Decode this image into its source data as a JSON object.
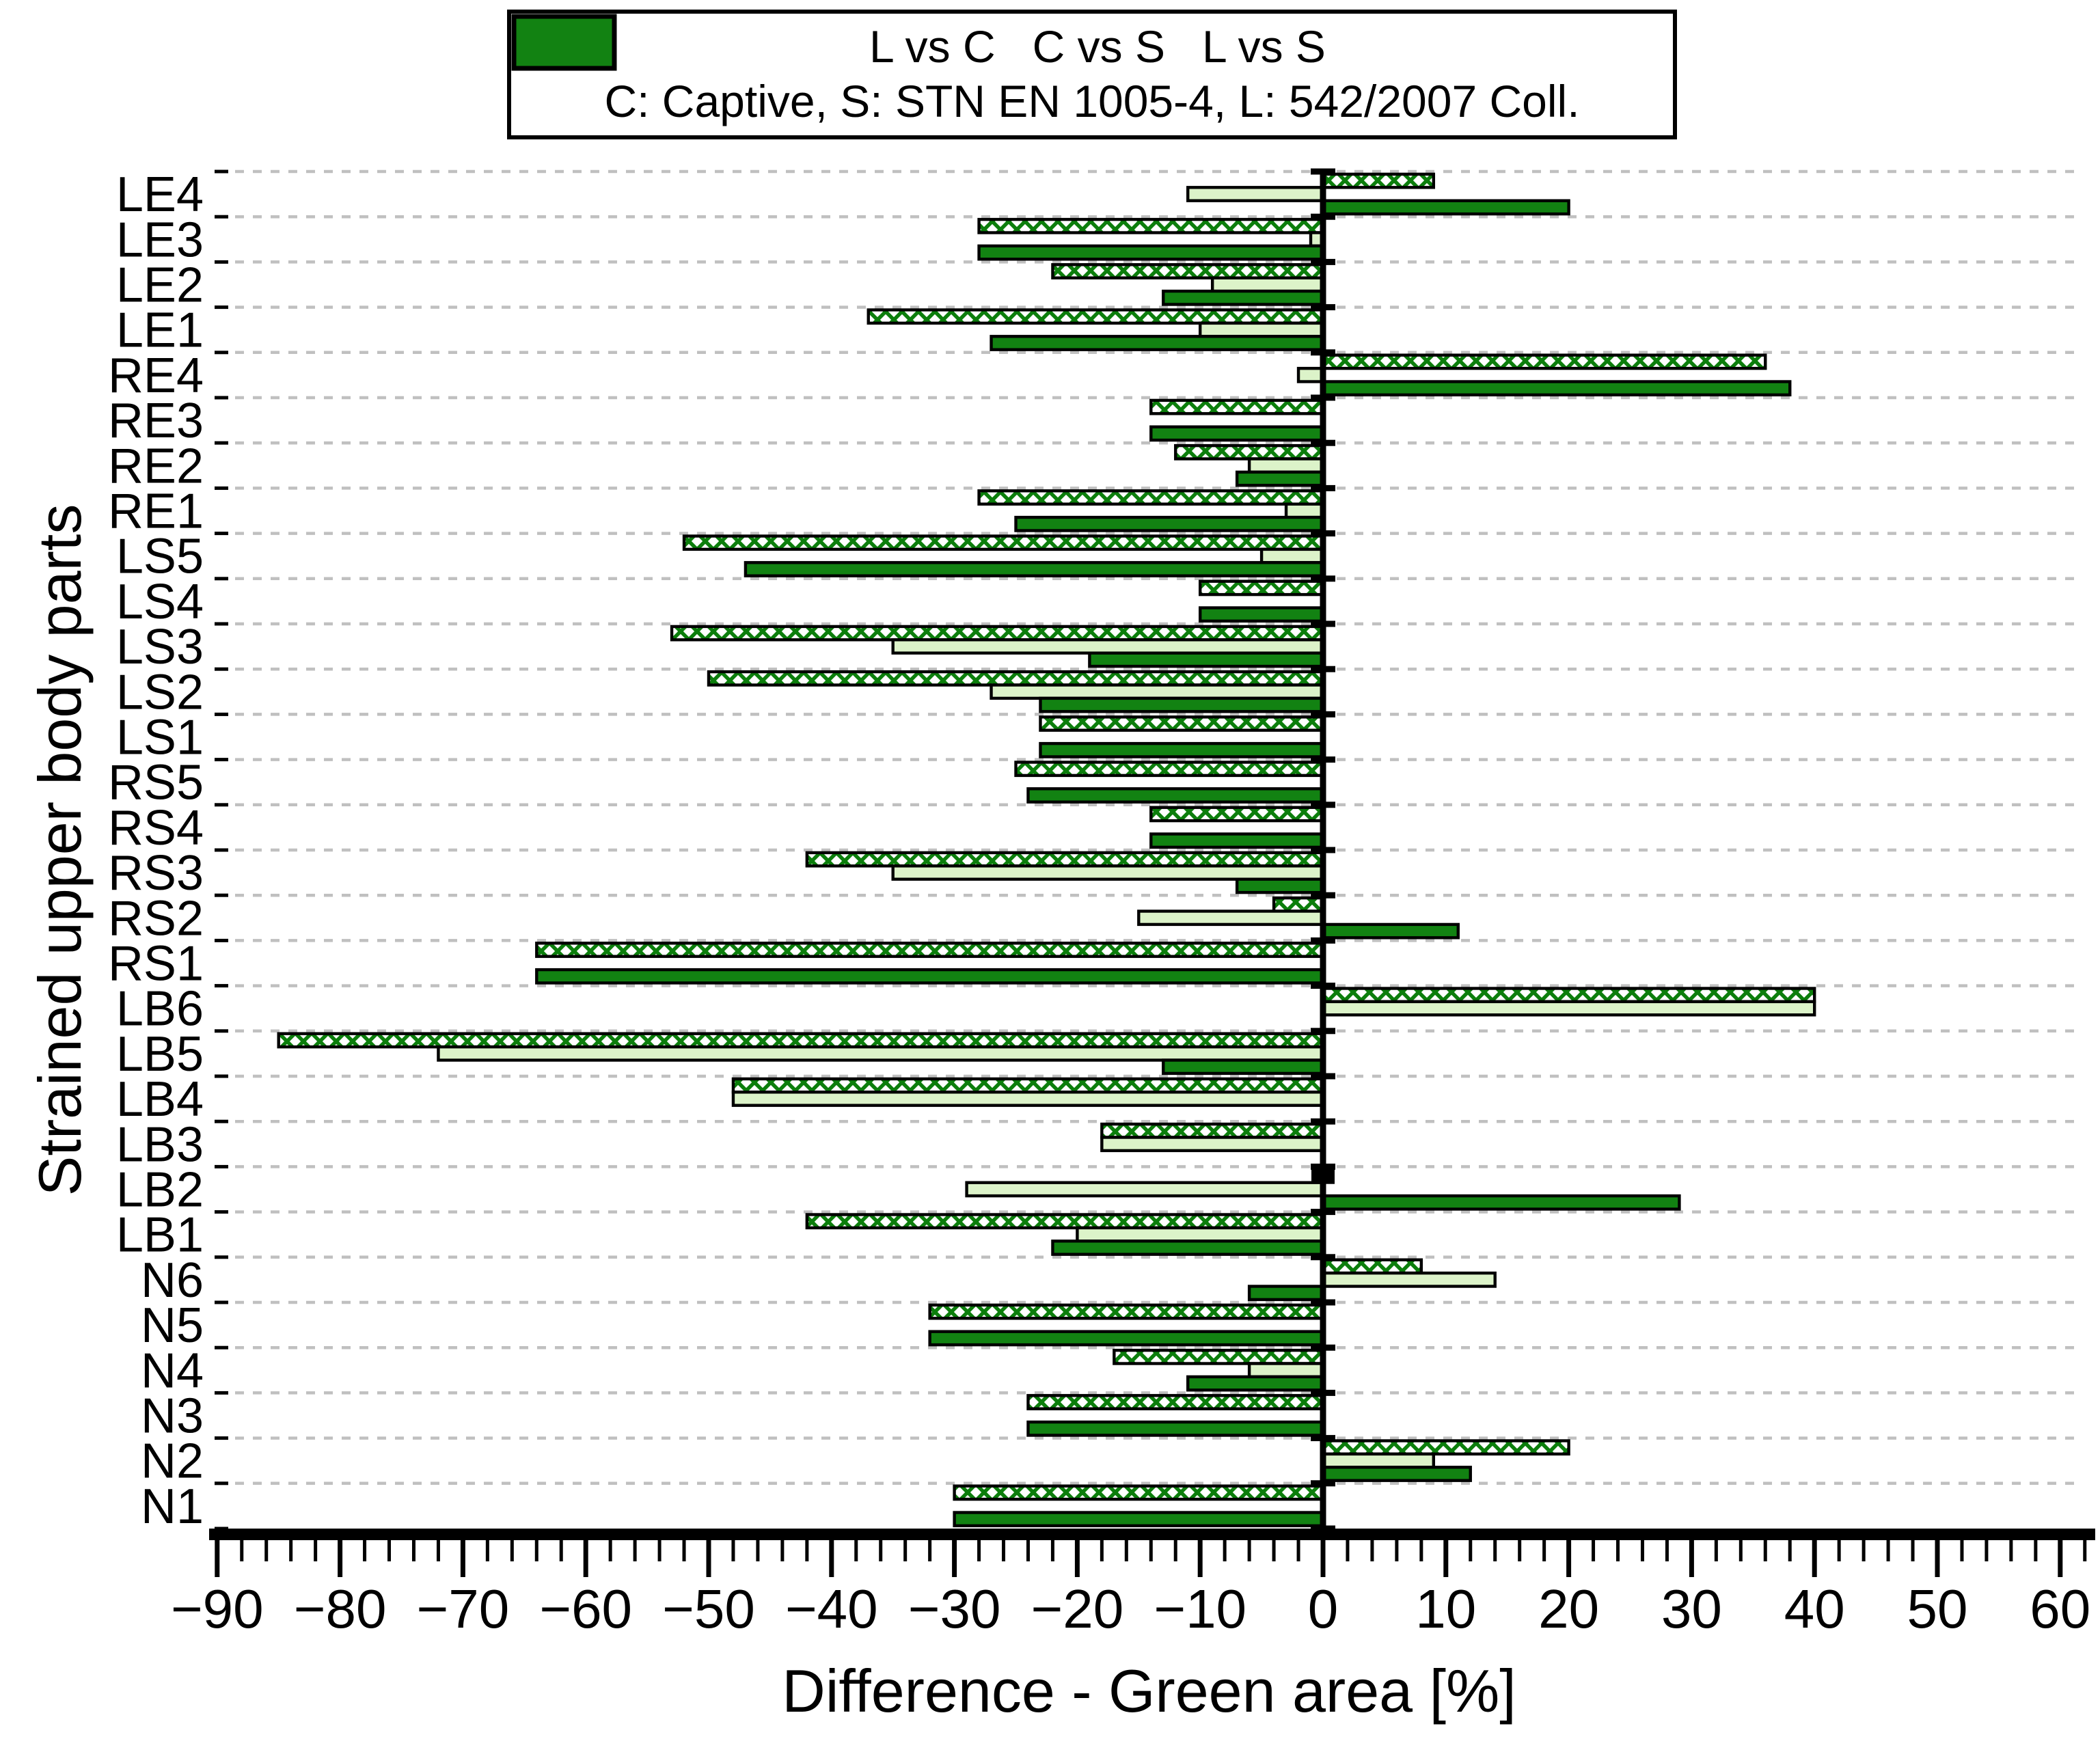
{
  "legend": {
    "series": [
      {
        "label": "L vs C",
        "style": "hatched"
      },
      {
        "label": "C vs S",
        "style": "light"
      },
      {
        "label": "L vs S",
        "style": "dark"
      }
    ],
    "note": "C: Captive, S: STN EN 1005-4, L: 542/2007 Coll."
  },
  "chart_data": {
    "type": "bar",
    "orientation": "horizontal",
    "title": "",
    "xlabel": "Difference - Green area [%]",
    "ylabel": "Strained upper body parts",
    "xlim": [
      -90,
      60
    ],
    "xticks": [
      -90,
      -80,
      -70,
      -60,
      -50,
      -40,
      -30,
      -20,
      -10,
      0,
      10,
      20,
      30,
      40,
      50,
      60
    ],
    "minor_tick_step": 2,
    "grid": "dashed-horizontal",
    "legend_position": "top-center",
    "categories": [
      "LE4",
      "LE3",
      "LE2",
      "LE1",
      "RE4",
      "RE3",
      "RE2",
      "RE1",
      "LS5",
      "LS4",
      "LS3",
      "LS2",
      "LS1",
      "RS5",
      "RS4",
      "RS3",
      "RS2",
      "RS1",
      "LB6",
      "LB5",
      "LB4",
      "LB3",
      "LB2",
      "LB1",
      "N6",
      "N5",
      "N4",
      "N3",
      "N2",
      "N1"
    ],
    "series": [
      {
        "name": "L vs C",
        "style": "hatched",
        "values": [
          9,
          -28,
          -22,
          -37,
          36,
          -14,
          -12,
          -28,
          -52,
          -10,
          -53,
          -50,
          -23,
          -25,
          -14,
          -42,
          -4,
          -64,
          40,
          -85,
          -48,
          -18,
          0,
          -42,
          8,
          -32,
          -17,
          -24,
          20,
          -30
        ]
      },
      {
        "name": "C vs S",
        "style": "light",
        "values": [
          -11,
          -1,
          -9,
          -10,
          -2,
          null,
          -6,
          -3,
          -5,
          null,
          -35,
          -27,
          null,
          null,
          null,
          -35,
          -15,
          null,
          40,
          -72,
          -48,
          -18,
          -29,
          -20,
          14,
          null,
          -6,
          null,
          9,
          null
        ]
      },
      {
        "name": "L vs S",
        "style": "dark",
        "values": [
          20,
          -28,
          -13,
          -27,
          38,
          -14,
          -7,
          -25,
          -47,
          -10,
          -19,
          -23,
          -23,
          -24,
          -14,
          -7,
          11,
          -64,
          null,
          -13,
          null,
          null,
          29,
          -22,
          -6,
          -32,
          -11,
          -24,
          12,
          -30
        ]
      }
    ],
    "colors": {
      "dark": "#128212",
      "light": "#dcf3c9",
      "hatch": "#0c7e0c",
      "bar_outline": "#000000",
      "grid": "#c0c0c0",
      "axis": "#000000"
    }
  }
}
